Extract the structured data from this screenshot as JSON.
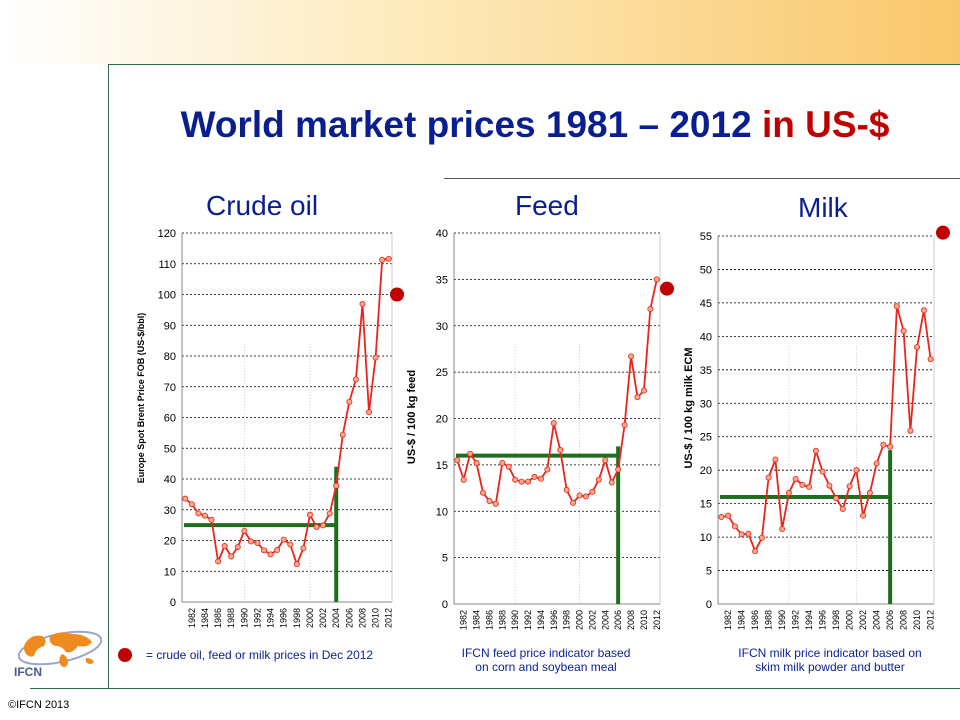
{
  "title": {
    "main": "World market prices 1981 – 2012 ",
    "highlight": "in US-$"
  },
  "legend_text": "= crude oil, feed or milk prices in Dec 2012",
  "copyright": "©IFCN 2013",
  "logo_text": "IFCN",
  "colors": {
    "title": "#0a1f8f",
    "accent_red": "#c00000",
    "series": "#e8261c",
    "marker_fill": "#f7a98a",
    "guide": "#1e6e1e",
    "marker_dec2012": "#c00000"
  },
  "chart_data": [
    {
      "type": "line",
      "title": "Crude oil",
      "ylabel": "Europe Spot Brent Price FOB (US-$/bbl)",
      "xlabel": "",
      "ylim": [
        0,
        120
      ],
      "yticks": [
        0,
        10,
        20,
        30,
        40,
        50,
        60,
        70,
        80,
        90,
        100,
        110,
        120
      ],
      "xticks": [
        "1982",
        "1984",
        "1986",
        "1988",
        "1990",
        "1992",
        "1994",
        "1996",
        "1998",
        "2000",
        "2002",
        "2004",
        "2006",
        "2008",
        "2010",
        "2012"
      ],
      "x": [
        1981,
        1982,
        1983,
        1984,
        1985,
        1986,
        1987,
        1988,
        1989,
        1990,
        1991,
        1992,
        1993,
        1994,
        1995,
        1996,
        1997,
        1998,
        1999,
        2000,
        2001,
        2002,
        2003,
        2004,
        2005,
        2006,
        2007,
        2008,
        2009,
        2010,
        2011,
        2012
      ],
      "values": [
        33.6,
        31.8,
        28.8,
        28.1,
        26.7,
        13.2,
        18.2,
        14.8,
        17.9,
        23.1,
        19.7,
        19.2,
        16.8,
        15.5,
        16.9,
        20.3,
        18.7,
        12.3,
        17.5,
        28.4,
        24.4,
        24.9,
        28.8,
        37.8,
        54.4,
        65.1,
        72.4,
        96.9,
        61.7,
        79.5,
        111.3,
        111.6
      ],
      "guide": {
        "level": 25,
        "year": 2004,
        "top": 44
      },
      "dec2012_marker": 100,
      "grid": "horizontal dotted"
    },
    {
      "type": "line",
      "title": "Feed",
      "ylabel": "US-$ / 100 kg feed",
      "xlabel": "",
      "ylim": [
        0,
        40
      ],
      "yticks": [
        0,
        5,
        10,
        15,
        20,
        25,
        30,
        35,
        40
      ],
      "xticks": [
        "1982",
        "1984",
        "1986",
        "1988",
        "1990",
        "1992",
        "1994",
        "1996",
        "1998",
        "2000",
        "2002",
        "2004",
        "2006",
        "2008",
        "2010",
        "2012"
      ],
      "x": [
        1981,
        1982,
        1983,
        1984,
        1985,
        1986,
        1987,
        1988,
        1989,
        1990,
        1991,
        1992,
        1993,
        1994,
        1995,
        1996,
        1997,
        1998,
        1999,
        2000,
        2001,
        2002,
        2003,
        2004,
        2005,
        2006,
        2007,
        2008,
        2009,
        2010,
        2011,
        2012
      ],
      "values": [
        15.5,
        13.4,
        16.2,
        15.2,
        12.0,
        11.1,
        10.8,
        15.2,
        14.8,
        13.4,
        13.2,
        13.2,
        13.7,
        13.5,
        14.5,
        19.5,
        16.6,
        12.3,
        10.9,
        11.7,
        11.6,
        12.1,
        13.4,
        15.5,
        13.1,
        14.5,
        19.3,
        26.7,
        22.3,
        23.0,
        31.8,
        35.0
      ],
      "guide": {
        "level": 16,
        "year": 2006,
        "top": 17
      },
      "dec2012_marker": 34,
      "grid": "horizontal dotted",
      "note": [
        "IFCN feed price indicator based",
        "on corn and soybean meal"
      ]
    },
    {
      "type": "line",
      "title": "Milk",
      "ylabel": "US-$ / 100 kg milk ECM",
      "xlabel": "",
      "ylim": [
        0,
        55
      ],
      "yticks": [
        0,
        5,
        10,
        15,
        20,
        25,
        30,
        35,
        40,
        45,
        50,
        55
      ],
      "xticks": [
        "1982",
        "1984",
        "1986",
        "1988",
        "1990",
        "1992",
        "1994",
        "1996",
        "1998",
        "2000",
        "2002",
        "2004",
        "2006",
        "2008",
        "2010",
        "2012"
      ],
      "x": [
        1981,
        1982,
        1983,
        1984,
        1985,
        1986,
        1987,
        1988,
        1989,
        1990,
        1991,
        1992,
        1993,
        1994,
        1995,
        1996,
        1997,
        1998,
        1999,
        2000,
        2001,
        2002,
        2003,
        2004,
        2005,
        2006,
        2007,
        2008,
        2009,
        2010,
        2011,
        2012
      ],
      "values": [
        13.0,
        13.2,
        11.6,
        10.4,
        10.5,
        7.9,
        9.9,
        18.9,
        21.6,
        11.2,
        16.6,
        18.7,
        17.8,
        17.5,
        22.9,
        19.8,
        17.7,
        15.8,
        14.2,
        17.6,
        20.0,
        13.2,
        16.6,
        21.0,
        23.8,
        23.5,
        44.5,
        40.8,
        25.9,
        38.4,
        43.9,
        36.6
      ],
      "guide": {
        "level": 16,
        "year": 2006,
        "top": 23
      },
      "dec2012_marker": 55.5,
      "grid": "horizontal dotted",
      "note": [
        "IFCN milk price  indicator based on",
        "skim milk powder and butter"
      ]
    }
  ]
}
